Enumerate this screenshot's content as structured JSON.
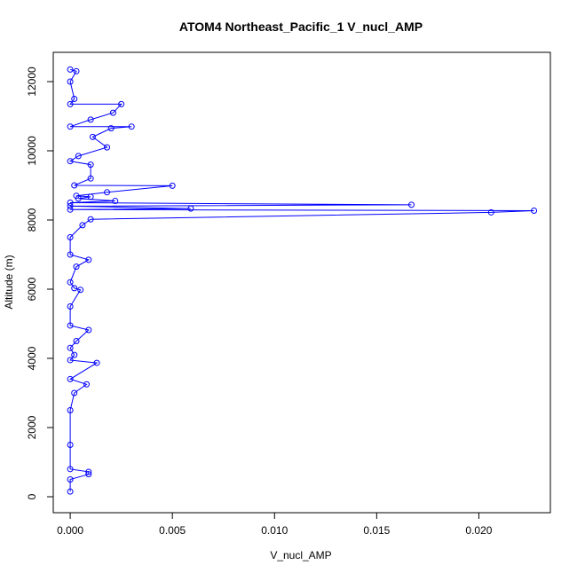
{
  "chart_data": {
    "type": "line",
    "title": "ATOM4 Northeast_Pacific_1 V_nucl_AMP",
    "xlabel": "V_nucl_AMP",
    "ylabel": "Altitude (m)",
    "color": "#0000ff",
    "markers": true,
    "x": [
      0,
      0,
      0.0009,
      0.0009,
      0,
      0,
      0,
      0.0002,
      0.0008,
      0,
      0.0013,
      0,
      0.0002,
      0,
      0.0003,
      0.0009,
      0,
      0,
      0.0005,
      0.0002,
      0,
      0.0003,
      0.0009,
      0,
      0,
      0.0006,
      0.001,
      0.0206,
      0.0227,
      0,
      0.0059,
      0,
      0.0167,
      0,
      0.0022,
      0.0004,
      0.001,
      0.0003,
      0.0018,
      0.005,
      0.0002,
      0.001,
      0.001,
      0,
      0.0004,
      0.0018,
      0.0011,
      0.002,
      0.003,
      0,
      0.001,
      0.0021,
      0.0025,
      0,
      0.0002,
      0,
      0.0003,
      0
    ],
    "values": [
      150,
      500,
      650,
      720,
      800,
      1500,
      2500,
      3000,
      3250,
      3400,
      3870,
      3950,
      4100,
      4300,
      4500,
      4820,
      4950,
      5500,
      5980,
      6030,
      6200,
      6650,
      6850,
      7000,
      7500,
      7850,
      8020,
      8220,
      8270,
      8300,
      8330,
      8400,
      8440,
      8500,
      8550,
      8620,
      8670,
      8700,
      8800,
      8990,
      9000,
      9200,
      9600,
      9700,
      9850,
      10100,
      10400,
      10650,
      10700,
      10700,
      10900,
      11100,
      11350,
      11350,
      11500,
      12000,
      12300,
      12350
    ],
    "xlim": [
      -0.00083,
      0.0235
    ],
    "ylim": [
      -461,
      12846
    ],
    "xticks": [
      {
        "value": 0,
        "label": "0.000"
      },
      {
        "value": 0.005,
        "label": "0.005"
      },
      {
        "value": 0.01,
        "label": "0.010"
      },
      {
        "value": 0.015,
        "label": "0.015"
      },
      {
        "value": 0.02,
        "label": "0.020"
      }
    ],
    "yticks": [
      0,
      2000,
      4000,
      6000,
      8000,
      10000,
      12000
    ]
  }
}
